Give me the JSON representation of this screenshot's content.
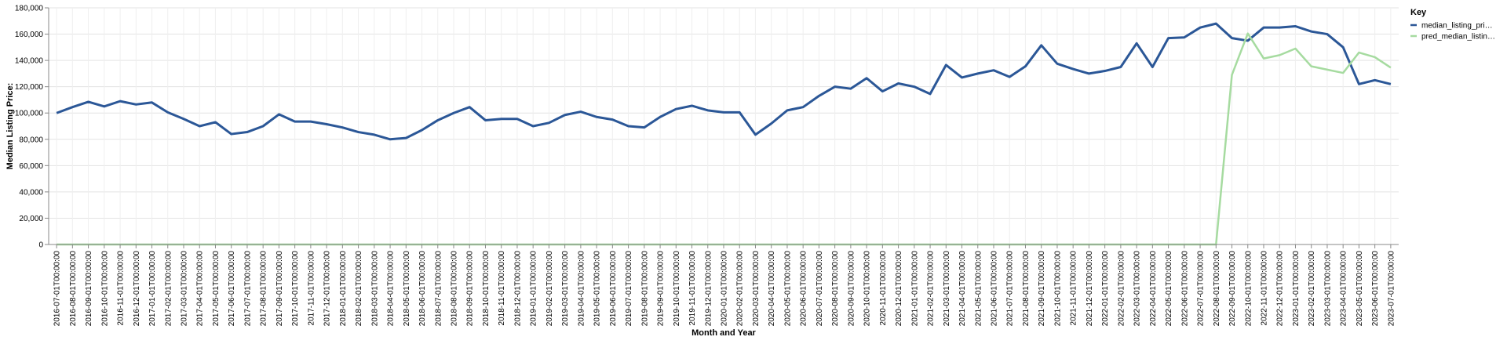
{
  "chart_data": {
    "type": "line",
    "xlabel": "Month and Year",
    "ylabel": "Median Listing Price:",
    "ylim": [
      0,
      180000
    ],
    "yticks": [
      0,
      20000,
      40000,
      60000,
      80000,
      100000,
      120000,
      140000,
      160000,
      180000
    ],
    "ytick_labels": [
      "0",
      "20,000",
      "40,000",
      "60,000",
      "80,000",
      "100,000",
      "120,000",
      "140,000",
      "160,000",
      "180,000"
    ],
    "grid": true,
    "legend": {
      "title": "Key",
      "placement": "top-right",
      "entries": [
        "median_listing_pri…",
        "pred_median_listin…"
      ]
    },
    "x": [
      "2016-07-01T00:00:00",
      "2016-08-01T00:00:00",
      "2016-09-01T00:00:00",
      "2016-10-01T00:00:00",
      "2016-11-01T00:00:00",
      "2016-12-01T00:00:00",
      "2017-01-01T00:00:00",
      "2017-02-01T00:00:00",
      "2017-03-01T00:00:00",
      "2017-04-01T00:00:00",
      "2017-05-01T00:00:00",
      "2017-06-01T00:00:00",
      "2017-07-01T00:00:00",
      "2017-08-01T00:00:00",
      "2017-09-01T00:00:00",
      "2017-10-01T00:00:00",
      "2017-11-01T00:00:00",
      "2017-12-01T00:00:00",
      "2018-01-01T00:00:00",
      "2018-02-01T00:00:00",
      "2018-03-01T00:00:00",
      "2018-04-01T00:00:00",
      "2018-05-01T00:00:00",
      "2018-06-01T00:00:00",
      "2018-07-01T00:00:00",
      "2018-08-01T00:00:00",
      "2018-09-01T00:00:00",
      "2018-10-01T00:00:00",
      "2018-11-01T00:00:00",
      "2018-12-01T00:00:00",
      "2019-01-01T00:00:00",
      "2019-02-01T00:00:00",
      "2019-03-01T00:00:00",
      "2019-04-01T00:00:00",
      "2019-05-01T00:00:00",
      "2019-06-01T00:00:00",
      "2019-07-01T00:00:00",
      "2019-08-01T00:00:00",
      "2019-09-01T00:00:00",
      "2019-10-01T00:00:00",
      "2019-11-01T00:00:00",
      "2019-12-01T00:00:00",
      "2020-01-01T00:00:00",
      "2020-02-01T00:00:00",
      "2020-03-01T00:00:00",
      "2020-04-01T00:00:00",
      "2020-05-01T00:00:00",
      "2020-06-01T00:00:00",
      "2020-07-01T00:00:00",
      "2020-08-01T00:00:00",
      "2020-09-01T00:00:00",
      "2020-10-01T00:00:00",
      "2020-11-01T00:00:00",
      "2020-12-01T00:00:00",
      "2021-01-01T00:00:00",
      "2021-02-01T00:00:00",
      "2021-03-01T00:00:00",
      "2021-04-01T00:00:00",
      "2021-05-01T00:00:00",
      "2021-06-01T00:00:00",
      "2021-07-01T00:00:00",
      "2021-08-01T00:00:00",
      "2021-09-01T00:00:00",
      "2021-10-01T00:00:00",
      "2021-11-01T00:00:00",
      "2021-12-01T00:00:00",
      "2022-01-01T00:00:00",
      "2022-02-01T00:00:00",
      "2022-03-01T00:00:00",
      "2022-04-01T00:00:00",
      "2022-05-01T00:00:00",
      "2022-06-01T00:00:00",
      "2022-07-01T00:00:00",
      "2022-08-01T00:00:00",
      "2022-09-01T00:00:00",
      "2022-10-01T00:00:00",
      "2022-11-01T00:00:00",
      "2022-12-01T00:00:00",
      "2023-01-01T00:00:00",
      "2023-02-01T00:00:00",
      "2023-03-01T00:00:00",
      "2023-04-01T00:00:00",
      "2023-05-01T00:00:00",
      "2023-06-01T00:00:00",
      "2023-07-01T00:00:00"
    ],
    "series": [
      {
        "name": "median_listing_pri…",
        "color": "#2b5797",
        "values": [
          100000,
          104500,
          108500,
          105000,
          109000,
          106500,
          108000,
          100500,
          95500,
          90000,
          93000,
          84000,
          85500,
          90000,
          99000,
          93500,
          93500,
          91500,
          89000,
          85500,
          83500,
          80000,
          81000,
          87000,
          94500,
          100000,
          104500,
          94500,
          95500,
          95500,
          90000,
          92500,
          98500,
          101000,
          97000,
          95000,
          90000,
          89000,
          97000,
          103000,
          105500,
          102000,
          100500,
          100500,
          83500,
          92000,
          102000,
          104500,
          113000,
          120000,
          118500,
          126500,
          116500,
          122500,
          120000,
          114500,
          136500,
          127000,
          130000,
          132500,
          127500,
          135500,
          151500,
          137500,
          133500,
          130000,
          132000,
          135000,
          153000,
          135000,
          157000,
          157500,
          165000,
          168000,
          157000,
          155000,
          165000,
          165000,
          166000,
          162000,
          160000,
          150000,
          122000,
          125000,
          122000
        ]
      },
      {
        "name": "pred_median_listin…",
        "color": "#a6dba0",
        "values": [
          0,
          0,
          0,
          0,
          0,
          0,
          0,
          0,
          0,
          0,
          0,
          0,
          0,
          0,
          0,
          0,
          0,
          0,
          0,
          0,
          0,
          0,
          0,
          0,
          0,
          0,
          0,
          0,
          0,
          0,
          0,
          0,
          0,
          0,
          0,
          0,
          0,
          0,
          0,
          0,
          0,
          0,
          0,
          0,
          0,
          0,
          0,
          0,
          0,
          0,
          0,
          0,
          0,
          0,
          0,
          0,
          0,
          0,
          0,
          0,
          0,
          0,
          0,
          0,
          0,
          0,
          0,
          0,
          0,
          0,
          0,
          0,
          0,
          0,
          129000,
          160500,
          141500,
          144000,
          149000,
          135500,
          133000,
          130500,
          146000,
          142500,
          134500
        ]
      }
    ]
  }
}
